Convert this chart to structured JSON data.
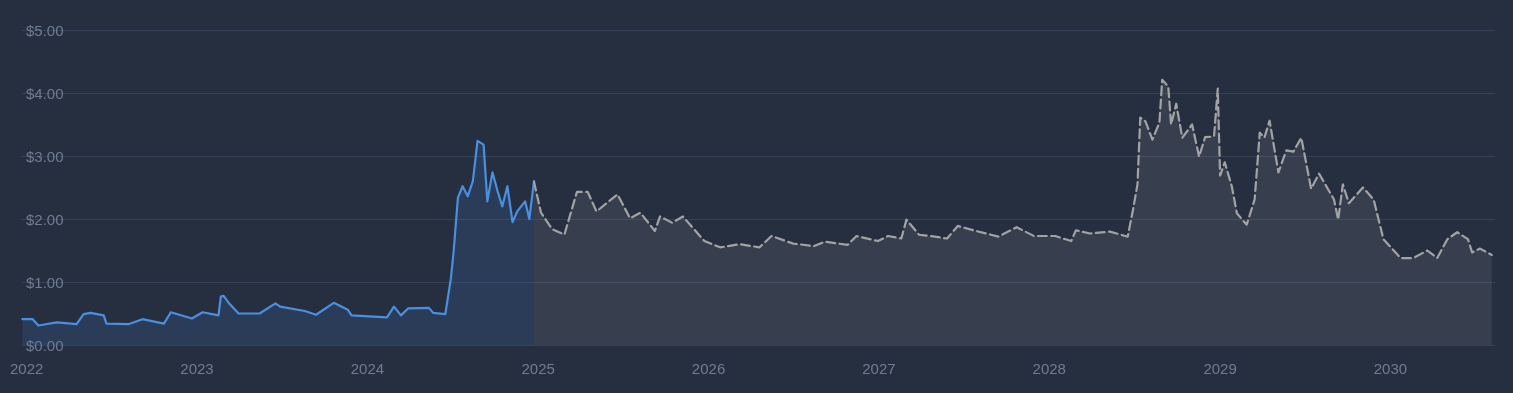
{
  "chart_data": {
    "type": "area",
    "xlim": [
      "2021-12-22",
      "2030-08-13"
    ],
    "xticks": [
      {
        "value": "2022-01-01",
        "label": "2022"
      },
      {
        "value": "2023-01-01",
        "label": "2023"
      },
      {
        "value": "2024-01-01",
        "label": "2024"
      },
      {
        "value": "2025-01-01",
        "label": "2025"
      },
      {
        "value": "2026-01-01",
        "label": "2026"
      },
      {
        "value": "2027-01-01",
        "label": "2027"
      },
      {
        "value": "2028-01-01",
        "label": "2028"
      },
      {
        "value": "2029-01-01",
        "label": "2029"
      },
      {
        "value": "2030-01-01",
        "label": "2030"
      }
    ],
    "ylim": [
      0,
      5
    ],
    "yticks": [
      {
        "value": 0,
        "label": "$0.00"
      },
      {
        "value": 1,
        "label": "$1.00"
      },
      {
        "value": 2,
        "label": "$2.00"
      },
      {
        "value": 3,
        "label": "$3.00"
      },
      {
        "value": 4,
        "label": "$4.00"
      },
      {
        "value": 5,
        "label": "$5.00"
      }
    ],
    "grid": "y",
    "marker": "none",
    "series": [
      {
        "color": "#4a8fe0",
        "line_style": "solid",
        "x": [
          "2021-12-23",
          "2022-01-14",
          "2022-01-26",
          "2022-03-07",
          "2022-04-18",
          "2022-05-03",
          "2022-05-18",
          "2022-06-15",
          "2022-06-21",
          "2022-08-07",
          "2022-09-06",
          "2022-10-22",
          "2022-11-06",
          "2022-12-21",
          "2023-01-13",
          "2023-02-16",
          "2023-02-21",
          "2023-02-27",
          "2023-03-12",
          "2023-03-31",
          "2023-05-15",
          "2023-06-18",
          "2023-06-28",
          "2023-08-20",
          "2023-09-13",
          "2023-10-21",
          "2023-11-20",
          "2023-11-28",
          "2024-02-12",
          "2024-02-27",
          "2024-03-13",
          "2024-03-28",
          "2024-05-12",
          "2024-05-21",
          "2024-06-16",
          "2024-06-28",
          "2024-07-04",
          "2024-07-13",
          "2024-07-23",
          "2024-08-03",
          "2024-08-14",
          "2024-08-24",
          "2024-09-06",
          "2024-09-14",
          "2024-09-25",
          "2024-10-06",
          "2024-10-16",
          "2024-10-27",
          "2024-11-07",
          "2024-11-17",
          "2024-12-04",
          "2024-12-13",
          "2024-12-23"
        ],
        "values": [
          0.41,
          0.41,
          0.31,
          0.36,
          0.33,
          0.49,
          0.51,
          0.47,
          0.34,
          0.33,
          0.41,
          0.34,
          0.52,
          0.42,
          0.52,
          0.47,
          0.77,
          0.78,
          0.65,
          0.5,
          0.5,
          0.66,
          0.61,
          0.54,
          0.48,
          0.67,
          0.56,
          0.47,
          0.44,
          0.61,
          0.47,
          0.58,
          0.59,
          0.51,
          0.49,
          1.06,
          1.5,
          2.34,
          2.52,
          2.36,
          2.6,
          3.24,
          3.18,
          2.28,
          2.74,
          2.44,
          2.2,
          2.52,
          1.95,
          2.12,
          2.28,
          2.0,
          2.6
        ]
      },
      {
        "color": "#a3a3a3",
        "line_style": "dashed",
        "x": [
          "2024-12-23",
          "2025-01-07",
          "2025-01-31",
          "2025-02-26",
          "2025-03-25",
          "2025-04-17",
          "2025-05-06",
          "2025-06-01",
          "2025-06-20",
          "2025-07-17",
          "2025-08-08",
          "2025-09-08",
          "2025-09-19",
          "2025-10-15",
          "2025-11-07",
          "2025-12-23",
          "2026-01-26",
          "2026-03-09",
          "2026-04-20",
          "2026-05-16",
          "2026-07-01",
          "2026-08-15",
          "2026-09-07",
          "2026-10-26",
          "2026-11-14",
          "2026-12-30",
          "2027-01-21",
          "2027-02-18",
          "2027-03-01",
          "2027-03-28",
          "2027-05-01",
          "2027-05-27",
          "2027-06-19",
          "2027-07-23",
          "2027-09-14",
          "2027-10-23",
          "2027-11-29",
          "2028-01-14",
          "2028-02-17",
          "2028-02-27",
          "2028-03-28",
          "2028-05-10",
          "2028-06-17",
          "2028-06-27",
          "2028-07-08",
          "2028-07-14",
          "2028-07-25",
          "2028-08-09",
          "2028-08-24",
          "2028-08-30",
          "2028-09-12",
          "2028-09-18",
          "2028-09-29",
          "2028-10-12",
          "2028-11-02",
          "2028-11-17",
          "2028-11-30",
          "2028-12-19",
          "2028-12-27",
          "2029-01-01",
          "2029-01-11",
          "2029-01-26",
          "2029-02-06",
          "2029-02-27",
          "2029-03-16",
          "2029-03-27",
          "2029-04-06",
          "2029-04-17",
          "2029-05-06",
          "2029-05-23",
          "2029-06-07",
          "2029-06-24",
          "2029-07-15",
          "2029-08-01",
          "2029-09-02",
          "2029-09-11",
          "2029-09-21",
          "2029-10-04",
          "2029-11-03",
          "2029-11-26",
          "2029-12-17",
          "2030-01-23",
          "2030-02-19",
          "2030-03-21",
          "2030-04-11",
          "2030-05-03",
          "2030-05-24",
          "2030-06-16",
          "2030-06-25",
          "2030-07-12",
          "2030-08-06"
        ],
        "values": [
          2.59,
          2.1,
          1.84,
          1.75,
          2.43,
          2.43,
          2.12,
          2.28,
          2.39,
          2.01,
          2.1,
          1.81,
          2.04,
          1.94,
          2.04,
          1.65,
          1.55,
          1.6,
          1.55,
          1.73,
          1.61,
          1.57,
          1.64,
          1.59,
          1.73,
          1.65,
          1.73,
          1.69,
          1.99,
          1.75,
          1.72,
          1.69,
          1.89,
          1.82,
          1.72,
          1.87,
          1.73,
          1.73,
          1.65,
          1.82,
          1.77,
          1.8,
          1.72,
          2.09,
          2.55,
          3.61,
          3.55,
          3.26,
          3.53,
          4.21,
          4.1,
          3.5,
          3.83,
          3.29,
          3.5,
          2.99,
          3.3,
          3.31,
          4.07,
          2.69,
          2.9,
          2.52,
          2.09,
          1.91,
          2.31,
          3.37,
          3.29,
          3.56,
          2.74,
          3.09,
          3.07,
          3.29,
          2.48,
          2.72,
          2.31,
          1.99,
          2.55,
          2.25,
          2.5,
          2.31,
          1.68,
          1.38,
          1.38,
          1.5,
          1.38,
          1.68,
          1.79,
          1.68,
          1.47,
          1.53,
          1.43
        ]
      }
    ]
  }
}
